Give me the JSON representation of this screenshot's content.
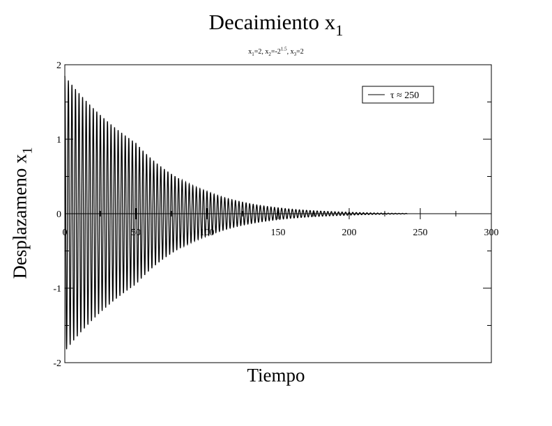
{
  "chart_data": {
    "type": "line",
    "title": "Decaimiento x",
    "title_subscript": "1",
    "subtitle": {
      "parts": [
        {
          "t": "x",
          "s": "1",
          "r": "=2, "
        },
        {
          "t": "x",
          "s": "2",
          "r": "=-2",
          "p": "1.5",
          "r2": ", "
        },
        {
          "t": "x",
          "s": "3",
          "r": "=2"
        }
      ]
    },
    "xlabel": "Tiempo",
    "ylabel": "Desplazameno x",
    "ylabel_subscript": "1",
    "xlim": [
      0,
      300
    ],
    "ylim": [
      -2,
      2
    ],
    "xticks": [
      0,
      50,
      100,
      150,
      200,
      250,
      300
    ],
    "yticks": [
      -2,
      -1,
      0,
      1,
      2
    ],
    "grid": false,
    "legend": {
      "placement": "top-right",
      "label": "τ ≈ 250"
    },
    "series": [
      {
        "name": "τ ≈ 250",
        "color": "#000000",
        "model": "damped oscillation",
        "amplitude_at": [
          {
            "x": 0,
            "amplitude": 1.85
          },
          {
            "x": 50,
            "amplitude": 0.95
          },
          {
            "x": 100,
            "amplitude": 0.3
          },
          {
            "x": 150,
            "amplitude": 0.08
          },
          {
            "x": 200,
            "amplitude": 0.02
          },
          {
            "x": 240,
            "amplitude": 0.004
          }
        ],
        "period": 2.5,
        "x_end": 241
      }
    ]
  }
}
